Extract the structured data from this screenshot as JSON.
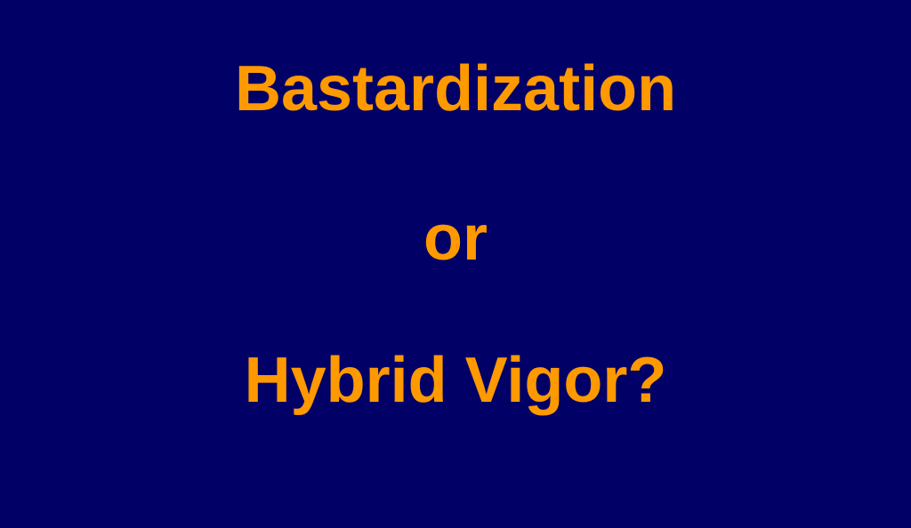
{
  "slide": {
    "lines": [
      "Bastardization",
      "or",
      "Hybrid Vigor?"
    ]
  },
  "colors": {
    "background": "#000066",
    "text": "#FF9900"
  }
}
